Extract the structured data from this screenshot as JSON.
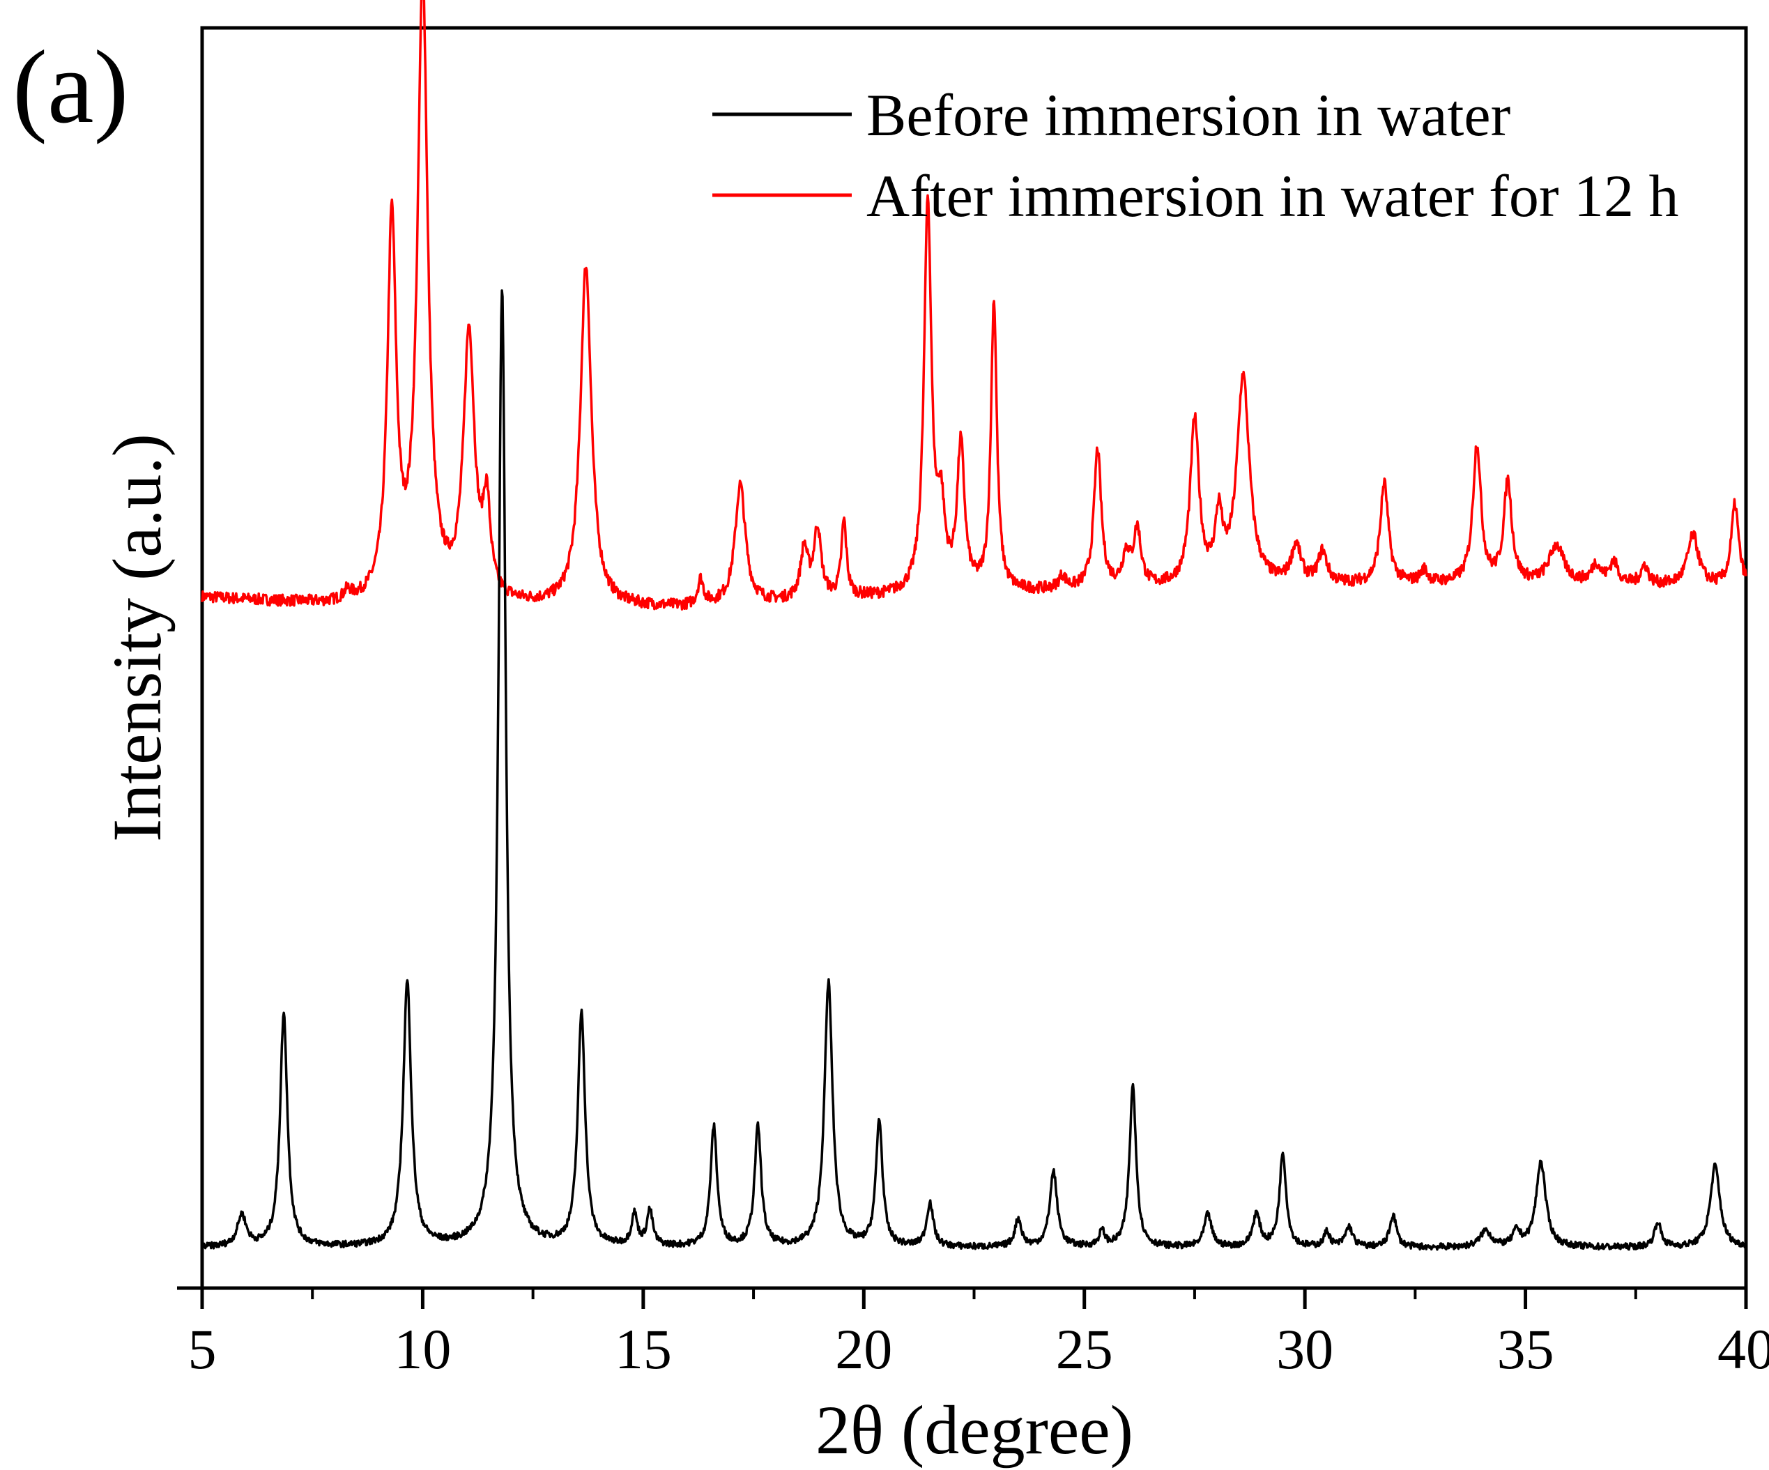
{
  "panel_label": "(a)",
  "chart_data": {
    "type": "line",
    "title": "",
    "xlabel": "2θ (degree)",
    "ylabel": "Intensity (a.u.)",
    "xlim": [
      5,
      40
    ],
    "ylim": [
      0,
      100
    ],
    "xticks": [
      5,
      10,
      15,
      20,
      25,
      30,
      35,
      40
    ],
    "xtick_labels": [
      "5",
      "10",
      "15",
      "20",
      "25",
      "30",
      "35",
      "40"
    ],
    "yticks_shown": false,
    "grid": false,
    "legend_position": "top-right",
    "series": [
      {
        "name": "Before immersion in water",
        "color": "#000000",
        "baseline": 3.2,
        "noise": 0.25,
        "peaks": [
          {
            "x": 5.9,
            "h": 2.5,
            "w": 0.12
          },
          {
            "x": 6.85,
            "h": 18.5,
            "w": 0.1
          },
          {
            "x": 9.65,
            "h": 21.0,
            "w": 0.11
          },
          {
            "x": 11.8,
            "h": 76.0,
            "w": 0.1
          },
          {
            "x": 13.6,
            "h": 18.5,
            "w": 0.1
          },
          {
            "x": 14.8,
            "h": 2.5,
            "w": 0.08
          },
          {
            "x": 15.15,
            "h": 2.8,
            "w": 0.08
          },
          {
            "x": 16.6,
            "h": 9.5,
            "w": 0.09
          },
          {
            "x": 17.6,
            "h": 9.5,
            "w": 0.09
          },
          {
            "x": 19.2,
            "h": 21.0,
            "w": 0.11
          },
          {
            "x": 20.35,
            "h": 10.0,
            "w": 0.09
          },
          {
            "x": 21.5,
            "h": 3.5,
            "w": 0.09
          },
          {
            "x": 23.5,
            "h": 2.2,
            "w": 0.09
          },
          {
            "x": 24.3,
            "h": 6.0,
            "w": 0.1
          },
          {
            "x": 25.4,
            "h": 1.2,
            "w": 0.08
          },
          {
            "x": 26.1,
            "h": 12.8,
            "w": 0.09
          },
          {
            "x": 27.8,
            "h": 2.6,
            "w": 0.1
          },
          {
            "x": 28.9,
            "h": 2.6,
            "w": 0.1
          },
          {
            "x": 29.5,
            "h": 7.5,
            "w": 0.09
          },
          {
            "x": 30.5,
            "h": 1.2,
            "w": 0.08
          },
          {
            "x": 31.0,
            "h": 1.6,
            "w": 0.1
          },
          {
            "x": 32.0,
            "h": 2.6,
            "w": 0.09
          },
          {
            "x": 34.1,
            "h": 1.3,
            "w": 0.15
          },
          {
            "x": 34.8,
            "h": 1.2,
            "w": 0.1
          },
          {
            "x": 35.35,
            "h": 6.8,
            "w": 0.13
          },
          {
            "x": 38.0,
            "h": 2.0,
            "w": 0.09
          },
          {
            "x": 39.3,
            "h": 6.5,
            "w": 0.13
          }
        ]
      },
      {
        "name": "After immersion in water for 12 h",
        "color": "#ff0000",
        "baseline": 54.5,
        "noise": 0.45,
        "drift": [
          {
            "x": 5,
            "y": 54.8
          },
          {
            "x": 8,
            "y": 54.1
          },
          {
            "x": 12,
            "y": 54.0
          },
          {
            "x": 16,
            "y": 53.9
          },
          {
            "x": 20,
            "y": 54.7
          },
          {
            "x": 24,
            "y": 55.2
          },
          {
            "x": 28,
            "y": 55.6
          },
          {
            "x": 32,
            "y": 55.8
          },
          {
            "x": 36,
            "y": 55.8
          },
          {
            "x": 40,
            "y": 55.6
          }
        ],
        "peaks": [
          {
            "x": 8.3,
            "h": 0.7,
            "w": 0.1
          },
          {
            "x": 9.3,
            "h": 30.0,
            "w": 0.12
          },
          {
            "x": 10.0,
            "h": 49.0,
            "w": 0.14
          },
          {
            "x": 11.05,
            "h": 21.0,
            "w": 0.15
          },
          {
            "x": 11.45,
            "h": 7.0,
            "w": 0.1
          },
          {
            "x": 13.7,
            "h": 27.0,
            "w": 0.15
          },
          {
            "x": 16.3,
            "h": 2.0,
            "w": 0.08
          },
          {
            "x": 17.2,
            "h": 9.5,
            "w": 0.14
          },
          {
            "x": 18.65,
            "h": 4.0,
            "w": 0.1
          },
          {
            "x": 18.95,
            "h": 5.5,
            "w": 0.1
          },
          {
            "x": 19.55,
            "h": 6.0,
            "w": 0.07
          },
          {
            "x": 21.45,
            "h": 31.0,
            "w": 0.1
          },
          {
            "x": 21.75,
            "h": 6.0,
            "w": 0.1
          },
          {
            "x": 22.2,
            "h": 11.5,
            "w": 0.1
          },
          {
            "x": 22.95,
            "h": 23.0,
            "w": 0.08
          },
          {
            "x": 24.5,
            "h": 1.0,
            "w": 0.1
          },
          {
            "x": 25.3,
            "h": 11.0,
            "w": 0.1
          },
          {
            "x": 25.95,
            "h": 2.5,
            "w": 0.1
          },
          {
            "x": 26.2,
            "h": 4.5,
            "w": 0.1
          },
          {
            "x": 27.5,
            "h": 13.0,
            "w": 0.12
          },
          {
            "x": 28.05,
            "h": 5.0,
            "w": 0.1
          },
          {
            "x": 28.6,
            "h": 16.5,
            "w": 0.17
          },
          {
            "x": 29.8,
            "h": 3.0,
            "w": 0.13
          },
          {
            "x": 30.4,
            "h": 2.5,
            "w": 0.12
          },
          {
            "x": 31.8,
            "h": 8.0,
            "w": 0.11
          },
          {
            "x": 32.7,
            "h": 1.0,
            "w": 0.1
          },
          {
            "x": 33.9,
            "h": 11.0,
            "w": 0.11
          },
          {
            "x": 34.6,
            "h": 8.0,
            "w": 0.11
          },
          {
            "x": 35.7,
            "h": 3.0,
            "w": 0.2
          },
          {
            "x": 36.6,
            "h": 1.5,
            "w": 0.12
          },
          {
            "x": 37.0,
            "h": 1.7,
            "w": 0.12
          },
          {
            "x": 37.7,
            "h": 1.5,
            "w": 0.1
          },
          {
            "x": 38.8,
            "h": 4.0,
            "w": 0.15
          },
          {
            "x": 39.75,
            "h": 6.5,
            "w": 0.1
          }
        ]
      }
    ]
  }
}
